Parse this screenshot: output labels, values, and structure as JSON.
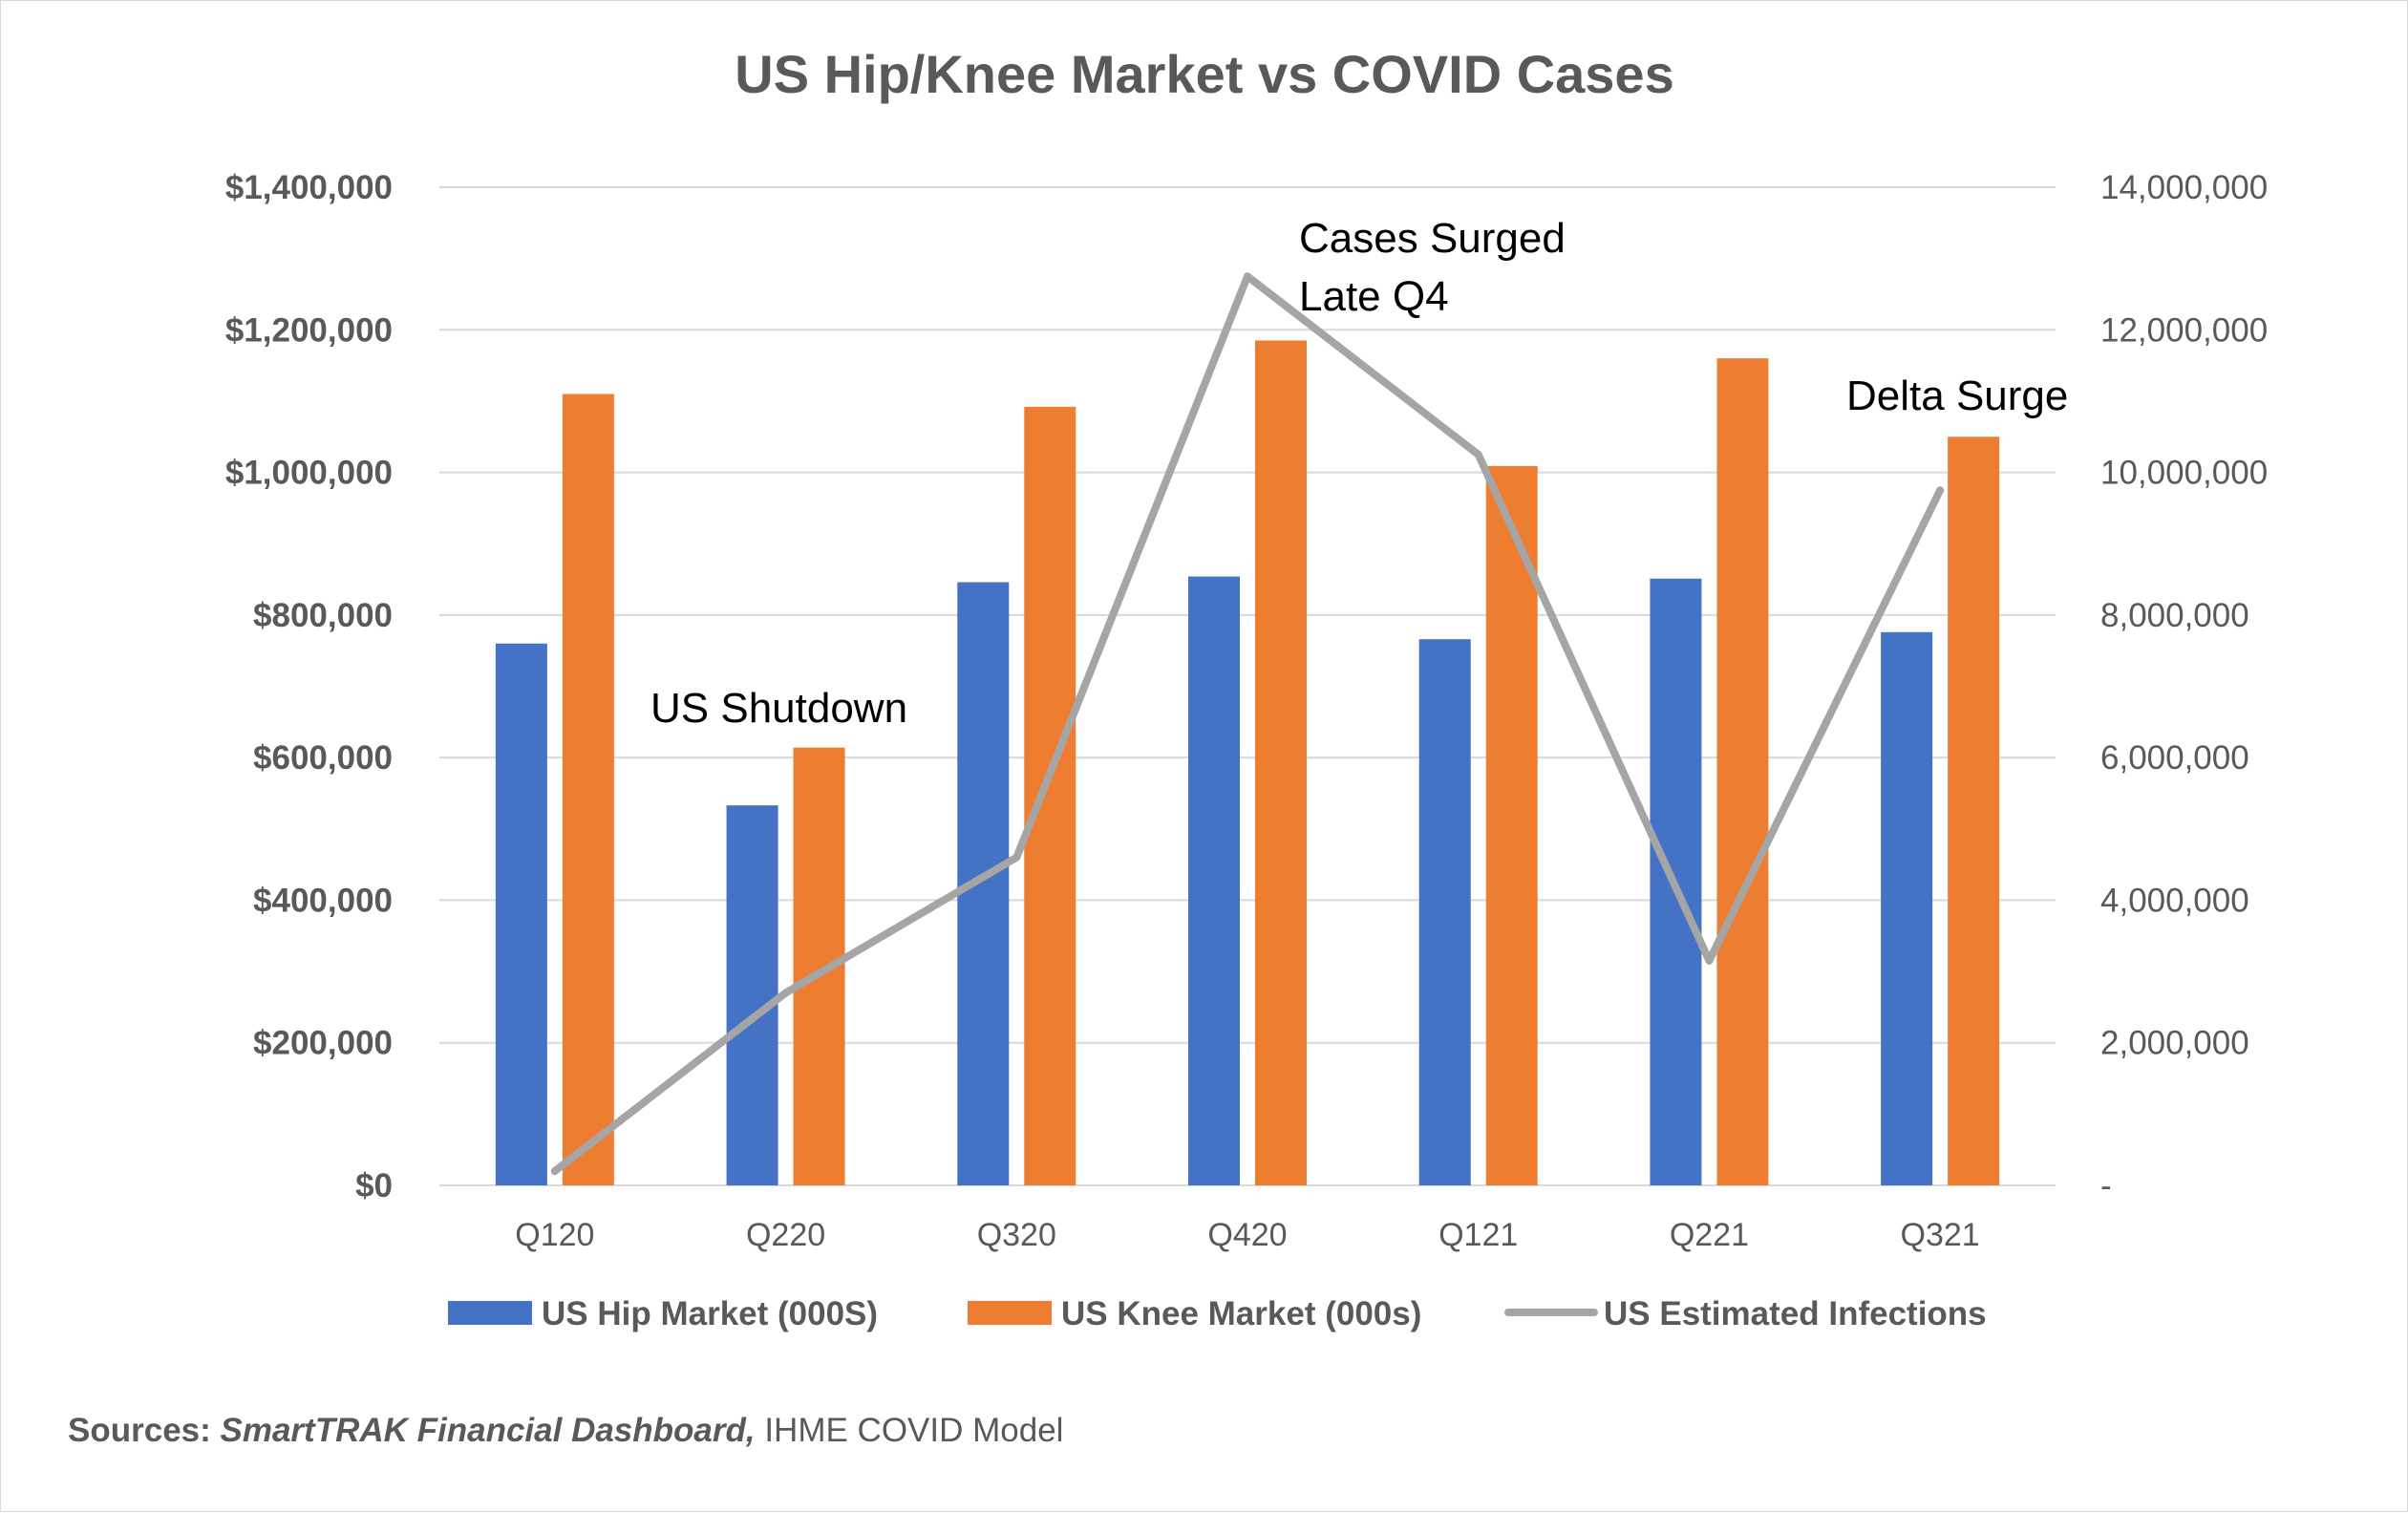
{
  "chart_data": {
    "type": "bar",
    "title": "US Hip/Knee Market vs COVID Cases",
    "categories": [
      "Q120",
      "Q220",
      "Q320",
      "Q420",
      "Q121",
      "Q221",
      "Q321"
    ],
    "series": [
      {
        "name": "US Hip Market (000S)",
        "kind": "bar",
        "axis": "left",
        "color": "#4472C4",
        "values": [
          760000,
          533000,
          846000,
          854000,
          766000,
          851000,
          776000
        ]
      },
      {
        "name": "US Knee Market (000s)",
        "kind": "bar",
        "axis": "left",
        "color": "#ED7D31",
        "values": [
          1110000,
          614000,
          1092000,
          1185000,
          1009000,
          1160000,
          1050000
        ]
      },
      {
        "name": "US Estimated Infections",
        "kind": "line",
        "axis": "right",
        "color": "#A5A5A5",
        "values": [
          200000,
          2700000,
          4600000,
          12750000,
          10250000,
          3150000,
          9750000
        ]
      }
    ],
    "y_left": {
      "ylim": [
        0,
        1400000
      ],
      "tick_labels": [
        "$0",
        "$200,000",
        "$400,000",
        "$600,000",
        "$800,000",
        "$1,000,000",
        "$1,200,000",
        "$1,400,000"
      ]
    },
    "y_right": {
      "ylim": [
        0,
        14000000
      ],
      "tick_labels": [
        "-",
        "2,000,000",
        "4,000,000",
        "6,000,000",
        "8,000,000",
        "10,000,000",
        "12,000,000",
        "14,000,000"
      ]
    },
    "grid": true,
    "legend_position": "bottom",
    "annotations": {
      "shutdown": "US Shutdown",
      "surged_line1": "Cases Surged",
      "surged_line2": "Late Q4",
      "delta": "Delta Surge"
    }
  },
  "footer": {
    "label": "Sources: ",
    "italic": "SmartTRAK Financial Dashboard,",
    "rest": " IHME COVID Model"
  }
}
